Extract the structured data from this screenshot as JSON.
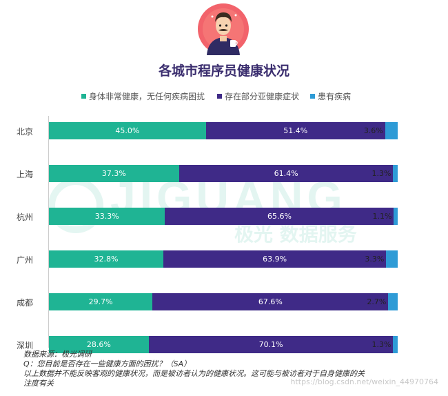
{
  "colors": {
    "healthy": "#1fb494",
    "subhealth": "#3f2a87",
    "ill": "#2e9bd6",
    "title": "#3a2d6e"
  },
  "watermark": {
    "main": "JIGUANG",
    "sub": "极光 数据服务"
  },
  "chart_data": {
    "type": "bar",
    "orientation": "horizontal",
    "stacked": true,
    "title": "各城市程序员健康状况",
    "categories": [
      "北京",
      "上海",
      "杭州",
      "广州",
      "成都",
      "深圳"
    ],
    "series": [
      {
        "name": "身体非常健康，无任何疾病困扰",
        "values": [
          45.0,
          37.3,
          33.3,
          32.8,
          29.7,
          28.6
        ],
        "labels": [
          "45.0%",
          "37.3%",
          "33.3%",
          "32.8%",
          "29.7%",
          "28.6%"
        ]
      },
      {
        "name": "存在部分亚健康症状",
        "values": [
          51.4,
          61.4,
          65.6,
          63.9,
          67.6,
          70.1
        ],
        "labels": [
          "51.4%",
          "61.4%",
          "65.6%",
          "63.9%",
          "67.6%",
          "70.1%"
        ]
      },
      {
        "name": "患有疾病",
        "values": [
          3.6,
          1.3,
          1.1,
          3.3,
          2.7,
          1.3
        ],
        "labels": [
          "3.6%",
          "1.3%",
          "1.1%",
          "3.3%",
          "2.7%",
          "1.3%"
        ]
      }
    ],
    "xlim": [
      0,
      100
    ],
    "legend_position": "top"
  },
  "footnote": {
    "source": "数据来源：极光调研",
    "question": "Q：您目前是否存在一些健康方面的困扰？（SA）",
    "note_line1": "以上数据并不能反映客观的健康状况，而是被访者认为的健康状况。这可能与被访者对于自身健康的关",
    "note_line2": "注度有关"
  },
  "url_watermark": "https://blog.csdn.net/weixin_44970764"
}
